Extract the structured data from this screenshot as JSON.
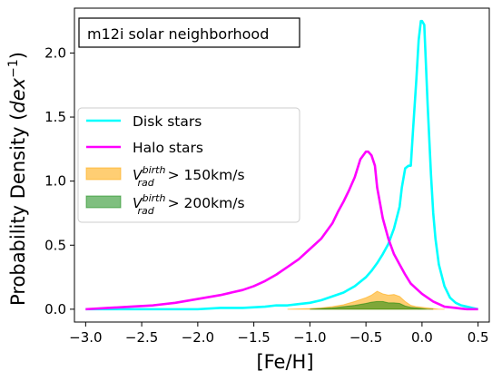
{
  "chart_data": {
    "type": "line",
    "annotation": "m12i solar neighborhood",
    "xlabel": "[Fe/H]",
    "ylabel": "Probability Density (dex⁻¹)",
    "xlim": [
      -3.1,
      0.6
    ],
    "ylim": [
      -0.1,
      2.35
    ],
    "xticks": [
      -3.0,
      -2.5,
      -2.0,
      -1.5,
      -1.0,
      -0.5,
      0.0,
      0.5
    ],
    "xtick_labels": [
      "−3.0",
      "−2.5",
      "−2.0",
      "−1.5",
      "−1.0",
      "−0.5",
      "0.0",
      "0.5"
    ],
    "yticks": [
      0.0,
      0.5,
      1.0,
      1.5,
      2.0
    ],
    "ytick_labels": [
      "0.0",
      "0.5",
      "1.0",
      "1.5",
      "2.0"
    ],
    "grid": false,
    "legend_position": "center-left",
    "series": [
      {
        "name": "Disk stars",
        "kind": "line",
        "color": "#00ffff",
        "x": [
          -3.0,
          -2.8,
          -2.6,
          -2.4,
          -2.2,
          -2.0,
          -1.8,
          -1.6,
          -1.4,
          -1.3,
          -1.2,
          -1.1,
          -1.0,
          -0.9,
          -0.8,
          -0.7,
          -0.6,
          -0.5,
          -0.45,
          -0.4,
          -0.35,
          -0.3,
          -0.25,
          -0.2,
          -0.18,
          -0.15,
          -0.12,
          -0.1,
          -0.08,
          -0.05,
          -0.03,
          -0.01,
          0.0,
          0.02,
          0.05,
          0.08,
          0.1,
          0.12,
          0.15,
          0.2,
          0.25,
          0.3,
          0.35,
          0.4,
          0.45,
          0.5
        ],
        "y": [
          0.0,
          0.0,
          0.0,
          0.0,
          0.0,
          0.0,
          0.01,
          0.01,
          0.02,
          0.03,
          0.03,
          0.04,
          0.05,
          0.07,
          0.1,
          0.13,
          0.18,
          0.25,
          0.3,
          0.36,
          0.43,
          0.51,
          0.63,
          0.8,
          0.95,
          1.1,
          1.12,
          1.12,
          1.4,
          1.8,
          2.1,
          2.25,
          2.25,
          2.22,
          1.6,
          1.05,
          0.75,
          0.55,
          0.35,
          0.18,
          0.09,
          0.05,
          0.03,
          0.02,
          0.01,
          0.0
        ]
      },
      {
        "name": "Halo stars",
        "kind": "line",
        "color": "#ff00ff",
        "x": [
          -3.0,
          -2.8,
          -2.6,
          -2.4,
          -2.2,
          -2.0,
          -1.8,
          -1.6,
          -1.5,
          -1.4,
          -1.3,
          -1.2,
          -1.1,
          -1.0,
          -0.9,
          -0.8,
          -0.75,
          -0.7,
          -0.65,
          -0.6,
          -0.55,
          -0.5,
          -0.48,
          -0.45,
          -0.42,
          -0.4,
          -0.35,
          -0.3,
          -0.25,
          -0.2,
          -0.15,
          -0.1,
          -0.05,
          0.0,
          0.05,
          0.1,
          0.15,
          0.2,
          0.3,
          0.4,
          0.5
        ],
        "y": [
          0.0,
          0.01,
          0.02,
          0.03,
          0.05,
          0.08,
          0.11,
          0.15,
          0.18,
          0.22,
          0.27,
          0.33,
          0.39,
          0.47,
          0.55,
          0.67,
          0.76,
          0.84,
          0.93,
          1.03,
          1.17,
          1.23,
          1.23,
          1.2,
          1.12,
          0.95,
          0.71,
          0.55,
          0.43,
          0.35,
          0.27,
          0.2,
          0.16,
          0.12,
          0.09,
          0.06,
          0.04,
          0.02,
          0.01,
          0.0,
          0.0
        ]
      },
      {
        "name": "V_rad^birth > 150km/s",
        "kind": "area",
        "color": "#ffa500",
        "opacity": 0.55,
        "x": [
          -1.2,
          -1.0,
          -0.9,
          -0.8,
          -0.7,
          -0.6,
          -0.5,
          -0.45,
          -0.4,
          -0.35,
          -0.3,
          -0.25,
          -0.2,
          -0.15,
          -0.1,
          -0.05,
          0.0,
          0.05,
          0.1,
          0.15,
          0.2
        ],
        "y": [
          0.0,
          0.005,
          0.01,
          0.02,
          0.035,
          0.06,
          0.09,
          0.11,
          0.14,
          0.12,
          0.11,
          0.115,
          0.1,
          0.06,
          0.03,
          0.02,
          0.015,
          0.01,
          0.005,
          0.0,
          0.0
        ]
      },
      {
        "name": "V_rad^birth > 200km/s",
        "kind": "area",
        "color": "#008000",
        "opacity": 0.5,
        "x": [
          -1.0,
          -0.9,
          -0.8,
          -0.7,
          -0.6,
          -0.5,
          -0.45,
          -0.4,
          -0.35,
          -0.3,
          -0.25,
          -0.2,
          -0.15,
          -0.1,
          -0.05,
          0.0,
          0.05,
          0.1
        ],
        "y": [
          0.0,
          0.005,
          0.01,
          0.02,
          0.03,
          0.045,
          0.055,
          0.06,
          0.06,
          0.05,
          0.05,
          0.045,
          0.025,
          0.015,
          0.01,
          0.005,
          0.0,
          0.0
        ]
      }
    ]
  },
  "legend": {
    "items": [
      {
        "label": "Disk stars",
        "kind": "line",
        "color": "#00ffff"
      },
      {
        "label": "Halo stars",
        "kind": "line",
        "color": "#ff00ff"
      },
      {
        "label_v": "V",
        "label_sup": "birth",
        "label_sub": "rad",
        "label_rest": " > 150km/s",
        "kind": "patch",
        "color": "#ffa500",
        "opacity": 0.55
      },
      {
        "label_v": "V",
        "label_sup": "birth",
        "label_sub": "rad",
        "label_rest": " > 200km/s",
        "kind": "patch",
        "color": "#008000",
        "opacity": 0.5
      }
    ]
  }
}
